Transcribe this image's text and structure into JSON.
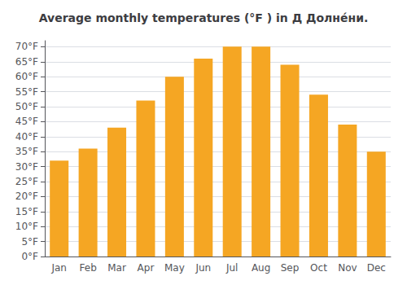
{
  "chart_data": {
    "type": "bar",
    "title": "Average monthly temperatures (°F ) in Д Долне́ни.",
    "categories": [
      "Jan",
      "Feb",
      "Mar",
      "Apr",
      "May",
      "Jun",
      "Jul",
      "Aug",
      "Sep",
      "Oct",
      "Nov",
      "Dec"
    ],
    "values": [
      32,
      36,
      43,
      52,
      60,
      66,
      70,
      70,
      64,
      54,
      44,
      35
    ],
    "color": "#F5A623",
    "ylim": [
      0,
      72
    ],
    "yticks": [
      {
        "value": 0,
        "label": "0°F"
      },
      {
        "value": 5,
        "label": "5°F"
      },
      {
        "value": 10,
        "label": "10°F"
      },
      {
        "value": 15,
        "label": "15°F"
      },
      {
        "value": 20,
        "label": "20°F"
      },
      {
        "value": 25,
        "label": "25°F"
      },
      {
        "value": 30,
        "label": "30°F"
      },
      {
        "value": 35,
        "label": "35°F"
      },
      {
        "value": 40,
        "label": "40°F"
      },
      {
        "value": 45,
        "label": "45°F"
      },
      {
        "value": 50,
        "label": "50°F"
      },
      {
        "value": 55,
        "label": "55°F"
      },
      {
        "value": 60,
        "label": "60°F"
      },
      {
        "value": 65,
        "label": "65°F"
      },
      {
        "value": 70,
        "label": "70°F"
      }
    ],
    "grid": true
  }
}
